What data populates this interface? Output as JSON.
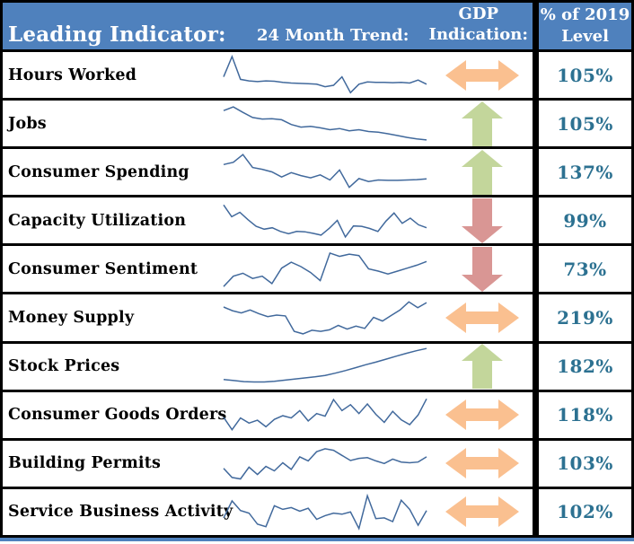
{
  "header": {
    "leading_indicator": "Leading Indicator:",
    "trend": "24 Month Trend:",
    "gdp_line1": "GDP",
    "gdp_line2": "Indication:",
    "level_line1": "% of 2019",
    "level_line2": "Level"
  },
  "colors": {
    "header_bg": "#4F81BD",
    "header_text": "#FFFFFF",
    "sparkline": "#41699C",
    "arrow_sideways": "#FAC090",
    "arrow_up": "#C3D69B",
    "arrow_down": "#D99694",
    "value_text": "#2C7191",
    "border": "#000000",
    "bottom_accent": "#4F81BD"
  },
  "chart_data": {
    "type": "table",
    "sparkline_type": "line",
    "x_range_months": 24,
    "columns": [
      "Leading Indicator:",
      "24 Month Trend:",
      "GDP Indication:",
      "% of 2019 Level"
    ],
    "rows": [
      {
        "indicator": "Hours Worked",
        "gdp_indication": "sideways",
        "pct_of_2019_level": 105,
        "pct_label": "105%",
        "trend_normalized": [
          0.45,
          1.0,
          0.38,
          0.34,
          0.32,
          0.34,
          0.33,
          0.3,
          0.28,
          0.27,
          0.26,
          0.25,
          0.18,
          0.22,
          0.45,
          0.02,
          0.25,
          0.31,
          0.3,
          0.3,
          0.29,
          0.3,
          0.28,
          0.36,
          0.25
        ]
      },
      {
        "indicator": "Jobs",
        "gdp_indication": "up",
        "pct_of_2019_level": 105,
        "pct_label": "105%",
        "trend_normalized": [
          0.85,
          0.95,
          0.8,
          0.66,
          0.62,
          0.63,
          0.6,
          0.47,
          0.4,
          0.42,
          0.38,
          0.33,
          0.36,
          0.3,
          0.33,
          0.28,
          0.26,
          0.22,
          0.17,
          0.12,
          0.08,
          0.05
        ]
      },
      {
        "indicator": "Consumer Spending",
        "gdp_indication": "up",
        "pct_of_2019_level": 137,
        "pct_label": "137%",
        "trend_normalized": [
          0.7,
          0.76,
          0.97,
          0.62,
          0.57,
          0.5,
          0.36,
          0.48,
          0.4,
          0.34,
          0.42,
          0.28,
          0.55,
          0.08,
          0.32,
          0.24,
          0.28,
          0.27,
          0.27,
          0.28,
          0.29,
          0.31
        ]
      },
      {
        "indicator": "Capacity Utilization",
        "gdp_indication": "down",
        "pct_of_2019_level": 99,
        "pct_label": "99%",
        "trend_normalized": [
          0.92,
          0.6,
          0.72,
          0.52,
          0.34,
          0.26,
          0.3,
          0.2,
          0.14,
          0.2,
          0.19,
          0.15,
          0.1,
          0.28,
          0.5,
          0.05,
          0.35,
          0.34,
          0.28,
          0.2,
          0.48,
          0.7,
          0.42,
          0.56,
          0.38,
          0.3
        ]
      },
      {
        "indicator": "Consumer Sentiment",
        "gdp_indication": "down",
        "pct_of_2019_level": 73,
        "pct_label": "73%",
        "trend_normalized": [
          0.02,
          0.3,
          0.38,
          0.24,
          0.3,
          0.1,
          0.52,
          0.68,
          0.56,
          0.4,
          0.18,
          0.93,
          0.84,
          0.9,
          0.86,
          0.5,
          0.44,
          0.36,
          0.44,
          0.52,
          0.6,
          0.7
        ]
      },
      {
        "indicator": "Money Supply",
        "gdp_indication": "sideways",
        "pct_of_2019_level": 219,
        "pct_label": "219%",
        "trend_normalized": [
          0.78,
          0.68,
          0.62,
          0.7,
          0.6,
          0.52,
          0.56,
          0.54,
          0.12,
          0.05,
          0.15,
          0.12,
          0.16,
          0.28,
          0.18,
          0.26,
          0.2,
          0.5,
          0.4,
          0.55,
          0.7,
          0.92,
          0.76,
          0.9
        ]
      },
      {
        "indicator": "Stock Prices",
        "gdp_indication": "up",
        "pct_of_2019_level": 182,
        "pct_label": "182%",
        "trend_normalized": [
          0.13,
          0.1,
          0.07,
          0.06,
          0.06,
          0.08,
          0.11,
          0.14,
          0.17,
          0.2,
          0.24,
          0.3,
          0.37,
          0.45,
          0.53,
          0.6,
          0.68,
          0.76,
          0.84,
          0.91,
          0.97
        ]
      },
      {
        "indicator": "Consumer Goods Orders",
        "gdp_indication": "sideways",
        "pct_of_2019_level": 118,
        "pct_label": "118%",
        "trend_normalized": [
          0.42,
          0.08,
          0.4,
          0.26,
          0.34,
          0.16,
          0.36,
          0.46,
          0.4,
          0.6,
          0.32,
          0.52,
          0.45,
          0.9,
          0.6,
          0.76,
          0.52,
          0.78,
          0.5,
          0.28,
          0.58,
          0.35,
          0.22,
          0.48,
          0.92
        ]
      },
      {
        "indicator": "Building Permits",
        "gdp_indication": "sideways",
        "pct_of_2019_level": 103,
        "pct_label": "103%",
        "trend_normalized": [
          0.35,
          0.1,
          0.06,
          0.38,
          0.18,
          0.4,
          0.28,
          0.5,
          0.32,
          0.66,
          0.55,
          0.8,
          0.88,
          0.84,
          0.7,
          0.56,
          0.62,
          0.64,
          0.55,
          0.48,
          0.6,
          0.52,
          0.5,
          0.52,
          0.66
        ]
      },
      {
        "indicator": "Service Business Activity",
        "gdp_indication": "sideways",
        "pct_of_2019_level": 102,
        "pct_label": "102%",
        "trend_normalized": [
          0.32,
          0.78,
          0.52,
          0.45,
          0.15,
          0.08,
          0.65,
          0.55,
          0.6,
          0.5,
          0.58,
          0.28,
          0.38,
          0.45,
          0.42,
          0.48,
          0.03,
          0.92,
          0.3,
          0.32,
          0.22,
          0.8,
          0.55,
          0.12,
          0.52
        ]
      }
    ]
  }
}
